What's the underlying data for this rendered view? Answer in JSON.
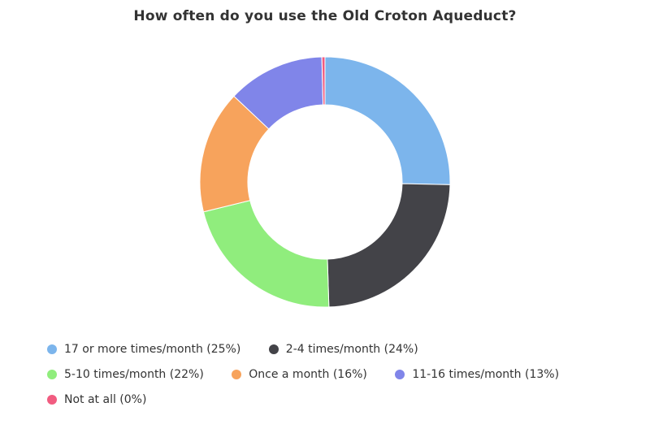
{
  "chart_data": {
    "type": "pie",
    "variant": "donut",
    "title": "How often do you use the Old Croton Aqueduct?",
    "slices": [
      {
        "label": "17 or more times/month (25%)",
        "percent": 25,
        "value": 25.4,
        "color": "#7cb5ec"
      },
      {
        "label": "2-4 times/month (24%)",
        "percent": 24,
        "value": 24.2,
        "color": "#434348"
      },
      {
        "label": "5-10 times/month (22%)",
        "percent": 22,
        "value": 21.7,
        "color": "#90ed7d"
      },
      {
        "label": "Once a month (16%)",
        "percent": 16,
        "value": 15.9,
        "color": "#f7a35c"
      },
      {
        "label": "11-16 times/month (13%)",
        "percent": 13,
        "value": 12.6,
        "color": "#8085e9"
      },
      {
        "label": "Not at all (0%)",
        "percent": 0,
        "value": 0.4,
        "color": "#f15c80"
      }
    ],
    "legend_position": "bottom"
  }
}
